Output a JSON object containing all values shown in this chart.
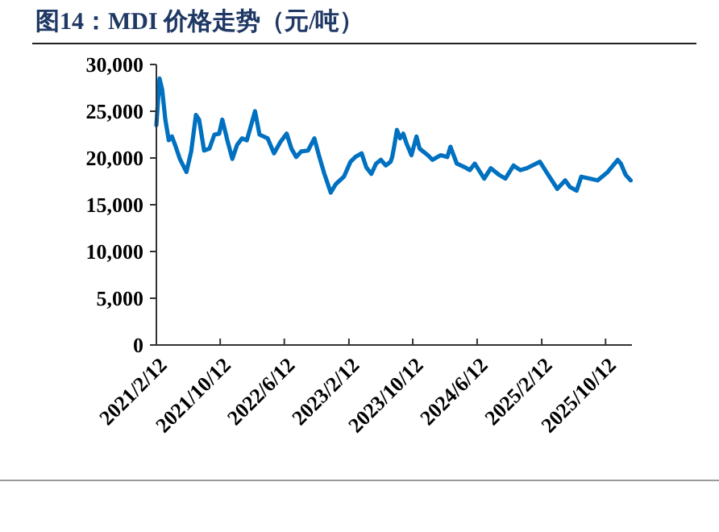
{
  "chart_data": {
    "type": "line",
    "title": "图14：MDI 价格走势（元/吨）",
    "xlim": [
      "2021-02-12",
      "2026-01-20"
    ],
    "xticks": [
      {
        "value": "2021-02-12",
        "label": "2021/2/12"
      },
      {
        "value": "2021-10-12",
        "label": "2021/10/12"
      },
      {
        "value": "2022-06-12",
        "label": "2022/6/12"
      },
      {
        "value": "2023-02-12",
        "label": "2023/2/12"
      },
      {
        "value": "2023-10-12",
        "label": "2023/10/12"
      },
      {
        "value": "2024-06-12",
        "label": "2024/6/12"
      },
      {
        "value": "2025-02-12",
        "label": "2025/2/12"
      },
      {
        "value": "2025-10-12",
        "label": "2025/10/12"
      }
    ],
    "ylim": [
      0,
      30000
    ],
    "yticks": [
      0,
      {
        "value": 5000,
        "label": "5,000"
      },
      {
        "value": 10000,
        "label": "10,000"
      },
      {
        "value": 15000,
        "label": "15,000"
      },
      {
        "value": 20000,
        "label": "20,000"
      },
      {
        "value": 25000,
        "label": "25,000"
      },
      {
        "value": 30000,
        "label": "30,000"
      }
    ],
    "grid": false,
    "line_style": "solid",
    "x": [
      "2021-02-12",
      "2021-02-24",
      "2021-03-06",
      "2021-03-18",
      "2021-03-31",
      "2021-04-12",
      "2021-04-24",
      "2021-05-12",
      "2021-06-06",
      "2021-06-24",
      "2021-07-12",
      "2021-07-24",
      "2021-08-12",
      "2021-09-01",
      "2021-09-20",
      "2021-10-08",
      "2021-10-20",
      "2021-11-08",
      "2021-11-27",
      "2021-12-15",
      "2022-01-03",
      "2022-01-21",
      "2022-02-21",
      "2022-03-10",
      "2022-04-10",
      "2022-05-04",
      "2022-05-28",
      "2022-06-21",
      "2022-07-09",
      "2022-07-27",
      "2022-08-15",
      "2022-09-10",
      "2022-10-04",
      "2022-10-23",
      "2022-11-11",
      "2022-12-05",
      "2022-12-24",
      "2023-01-24",
      "2023-02-18",
      "2023-03-08",
      "2023-04-01",
      "2023-04-19",
      "2023-05-08",
      "2023-05-26",
      "2023-06-13",
      "2023-07-02",
      "2023-07-20",
      "2023-07-26",
      "2023-08-01",
      "2023-08-13",
      "2023-08-25",
      "2023-09-06",
      "2023-09-19",
      "2023-10-07",
      "2023-10-26",
      "2023-11-07",
      "2023-12-08",
      "2023-12-26",
      "2024-01-26",
      "2024-02-20",
      "2024-03-03",
      "2024-03-27",
      "2024-04-27",
      "2024-05-15",
      "2024-06-03",
      "2024-07-09",
      "2024-08-03",
      "2024-09-03",
      "2024-09-27",
      "2024-10-28",
      "2024-11-23",
      "2024-12-17",
      "2025-02-05",
      "2025-03-06",
      "2025-04-12",
      "2025-05-12",
      "2025-05-30",
      "2025-06-24",
      "2025-07-12",
      "2025-08-12",
      "2025-09-12",
      "2025-10-20",
      "2025-11-27",
      "2025-12-09",
      "2025-12-27",
      "2026-01-15"
    ],
    "series": [
      {
        "color": "#0070c0",
        "values": [
          23500,
          28500,
          27300,
          24100,
          21900,
          22300,
          21400,
          19900,
          18500,
          20700,
          24600,
          24100,
          20800,
          21000,
          22500,
          22600,
          24100,
          21900,
          19900,
          21400,
          22100,
          21900,
          25000,
          22500,
          22100,
          20500,
          21700,
          22600,
          21000,
          20100,
          20700,
          20800,
          22100,
          20100,
          18300,
          16300,
          17200,
          18000,
          19600,
          20100,
          20500,
          19000,
          18300,
          19400,
          19800,
          19200,
          19600,
          20100,
          21000,
          23000,
          22100,
          22600,
          21500,
          20300,
          22300,
          21000,
          20300,
          19800,
          20300,
          20100,
          21200,
          19400,
          19000,
          18700,
          19400,
          17800,
          18900,
          18200,
          17800,
          19200,
          18700,
          18900,
          19600,
          18300,
          16700,
          17600,
          16900,
          16500,
          18000,
          17800,
          17600,
          18500,
          19800,
          19400,
          18200,
          17600
        ]
      }
    ]
  }
}
